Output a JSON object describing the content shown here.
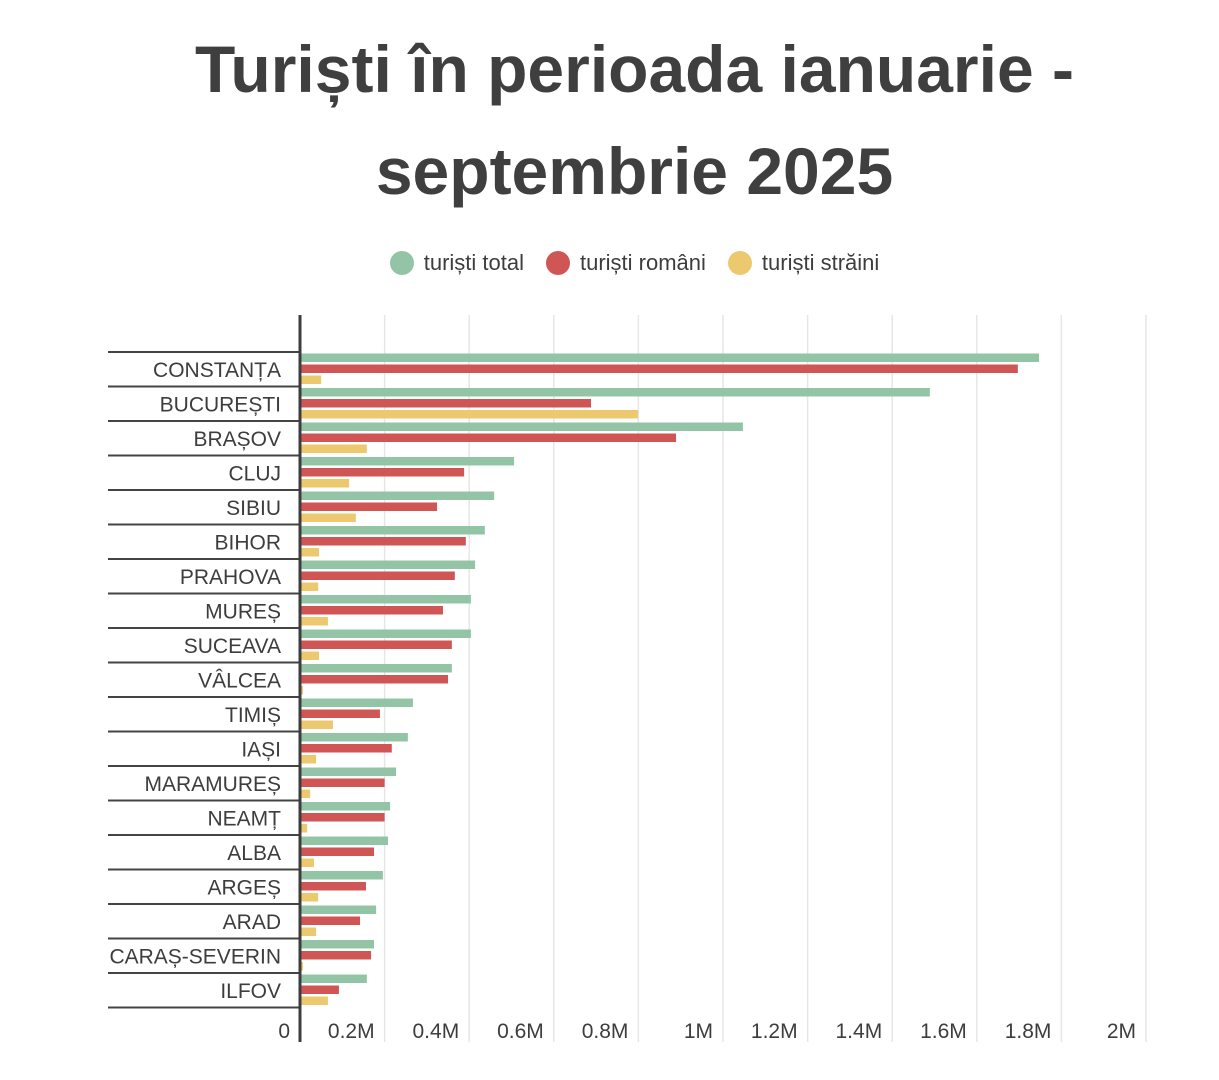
{
  "chart_data": {
    "type": "bar",
    "orientation": "horizontal",
    "title": "Turiști în perioada ianuarie - septembrie 2025",
    "title_lines": [
      "Turiști în perioada ianuarie -",
      "septembrie 2025"
    ],
    "legend_position": "top-center",
    "xlim": [
      0,
      2000000
    ],
    "grid": true,
    "xticks": [
      0,
      200000,
      400000,
      600000,
      800000,
      1000000,
      1200000,
      1400000,
      1600000,
      1800000,
      2000000
    ],
    "xtick_labels": [
      "0",
      "0.2M",
      "0.4M",
      "0.6M",
      "0.8M",
      "1M",
      "1.2M",
      "1.4M",
      "1.6M",
      "1.8M",
      "2M"
    ],
    "categories": [
      "CONSTANȚA",
      "BUCUREȘTI",
      "BRAȘOV",
      "CLUJ",
      "SIBIU",
      "BIHOR",
      "PRAHOVA",
      "MUREȘ",
      "SUCEAVA",
      "VÂLCEA",
      "TIMIȘ",
      "IAȘI",
      "MARAMUREȘ",
      "NEAMȚ",
      "ALBA",
      "ARGEȘ",
      "ARAD",
      "CARAȘ-SEVERIN",
      "ILFOV"
    ],
    "series": [
      {
        "name": "turiști total",
        "color": "#93c4a6",
        "values": [
          1747000,
          1489000,
          1047000,
          506000,
          459000,
          437000,
          414000,
          404000,
          404000,
          359000,
          267000,
          255000,
          227000,
          213000,
          208000,
          196000,
          180000,
          175000,
          158000
        ]
      },
      {
        "name": "turiști români",
        "color": "#d05656",
        "values": [
          1697000,
          688000,
          889000,
          388000,
          324000,
          392000,
          366000,
          338000,
          359000,
          350000,
          189000,
          217000,
          200000,
          200000,
          175000,
          156000,
          142000,
          168000,
          92000
        ]
      },
      {
        "name": "turiști străini",
        "color": "#ecc96e",
        "values": [
          50000,
          799000,
          158000,
          116000,
          132000,
          45000,
          43000,
          66000,
          45000,
          7000,
          78000,
          38000,
          24000,
          17000,
          33000,
          43000,
          38000,
          7000,
          66000
        ]
      }
    ]
  }
}
